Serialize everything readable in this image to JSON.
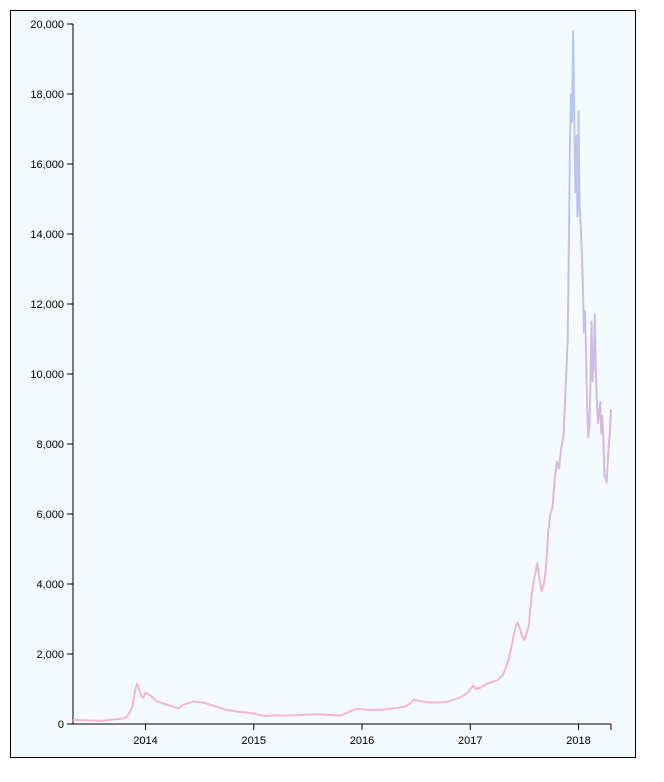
{
  "chart_data": {
    "type": "line",
    "title": "",
    "xlabel": "",
    "ylabel": "",
    "xlim": [
      2013.33,
      2018.3
    ],
    "ylim": [
      0,
      20000
    ],
    "grid": false,
    "x_ticks": [
      2014,
      2015,
      2016,
      2017,
      2018
    ],
    "x_tick_labels": [
      "2014",
      "2015",
      "2016",
      "2017",
      "2018"
    ],
    "y_ticks": [
      0,
      2000,
      4000,
      6000,
      8000,
      10000,
      12000,
      14000,
      16000,
      18000,
      20000
    ],
    "y_tick_labels": [
      "0",
      "2,000",
      "4,000",
      "6,000",
      "8,000",
      "10,000",
      "12,000",
      "14,000",
      "16,000",
      "18,000",
      "20,000"
    ],
    "gradient_colors": {
      "low": "#f7b6d2",
      "mid": "#d7b8e0",
      "high": "#aecbf5"
    },
    "series": [
      {
        "x": [
          2013.33,
          2013.4,
          2013.5,
          2013.6,
          2013.7,
          2013.78,
          2013.83,
          2013.88,
          2013.9,
          2013.92,
          2013.94,
          2013.96,
          2013.98,
          2014.0,
          2014.05,
          2014.1,
          2014.15,
          2014.2,
          2014.25,
          2014.3,
          2014.35,
          2014.4,
          2014.45,
          2014.5,
          2014.55,
          2014.6,
          2014.65,
          2014.7,
          2014.75,
          2014.8,
          2014.85,
          2014.9,
          2014.95,
          2015.0,
          2015.05,
          2015.1,
          2015.2,
          2015.3,
          2015.4,
          2015.5,
          2015.6,
          2015.7,
          2015.8,
          2015.85,
          2015.9,
          2015.95,
          2016.0,
          2016.1,
          2016.2,
          2016.3,
          2016.4,
          2016.45,
          2016.48,
          2016.5,
          2016.55,
          2016.6,
          2016.7,
          2016.8,
          2016.9,
          2016.98,
          2017.0,
          2017.03,
          2017.05,
          2017.1,
          2017.15,
          2017.2,
          2017.25,
          2017.3,
          2017.35,
          2017.38,
          2017.4,
          2017.42,
          2017.44,
          2017.46,
          2017.48,
          2017.5,
          2017.52,
          2017.54,
          2017.56,
          2017.58,
          2017.6,
          2017.62,
          2017.64,
          2017.66,
          2017.68,
          2017.7,
          2017.72,
          2017.74,
          2017.76,
          2017.78,
          2017.8,
          2017.82,
          2017.84,
          2017.86,
          2017.88,
          2017.9,
          2017.91,
          2017.92,
          2017.93,
          2017.94,
          2017.95,
          2017.96,
          2017.97,
          2017.98,
          2017.99,
          2018.0,
          2018.01,
          2018.02,
          2018.03,
          2018.04,
          2018.05,
          2018.06,
          2018.07,
          2018.08,
          2018.09,
          2018.1,
          2018.11,
          2018.12,
          2018.13,
          2018.14,
          2018.15,
          2018.16,
          2018.17,
          2018.18,
          2018.19,
          2018.2,
          2018.21,
          2018.22,
          2018.23,
          2018.24,
          2018.25,
          2018.26,
          2018.27,
          2018.28,
          2018.29,
          2018.3
        ],
        "y": [
          120,
          110,
          100,
          90,
          130,
          150,
          200,
          500,
          900,
          1150,
          1000,
          800,
          750,
          900,
          800,
          650,
          600,
          550,
          500,
          450,
          550,
          600,
          650,
          620,
          600,
          550,
          500,
          450,
          400,
          380,
          350,
          340,
          320,
          300,
          260,
          230,
          250,
          240,
          250,
          270,
          280,
          260,
          240,
          300,
          380,
          430,
          420,
          400,
          410,
          450,
          500,
          600,
          700,
          680,
          650,
          620,
          610,
          640,
          750,
          900,
          1000,
          1100,
          1000,
          1050,
          1150,
          1200,
          1250,
          1400,
          1800,
          2200,
          2500,
          2800,
          2900,
          2700,
          2500,
          2400,
          2600,
          2800,
          3500,
          4000,
          4300,
          4600,
          4100,
          3800,
          4000,
          4500,
          5500,
          6000,
          6200,
          7000,
          7500,
          7300,
          7900,
          8200,
          9500,
          11000,
          13500,
          16500,
          18000,
          17200,
          19800,
          17500,
          15200,
          16800,
          14500,
          17500,
          14800,
          14200,
          13500,
          12500,
          11200,
          11800,
          10500,
          9000,
          8200,
          8500,
          9600,
          11500,
          9800,
          10300,
          11700,
          10100,
          9200,
          8600,
          8900,
          9200,
          8300,
          8800,
          8100,
          7100,
          7000,
          6900,
          7500,
          8000,
          8300,
          9000
        ]
      }
    ]
  }
}
